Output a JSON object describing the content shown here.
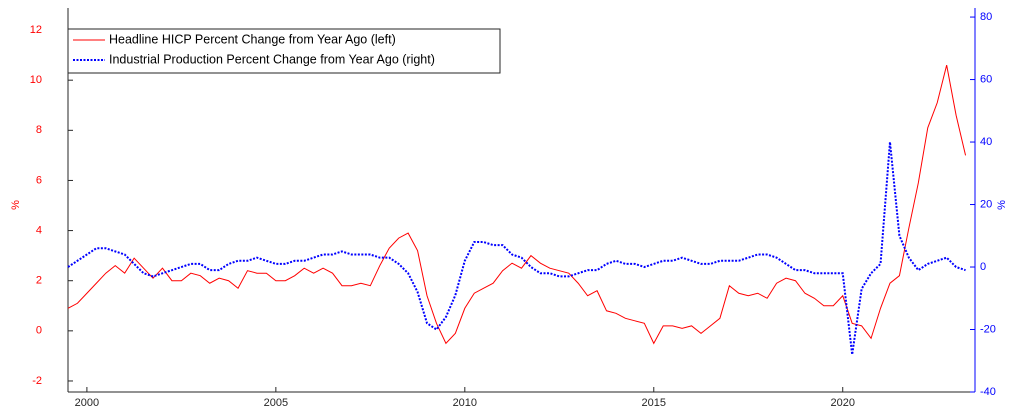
{
  "chart_data": {
    "type": "line",
    "x": [
      1999.5,
      1999.75,
      2000,
      2000.25,
      2000.5,
      2000.75,
      2001,
      2001.25,
      2001.5,
      2001.75,
      2002,
      2002.25,
      2002.5,
      2002.75,
      2003,
      2003.25,
      2003.5,
      2003.75,
      2004,
      2004.25,
      2004.5,
      2004.75,
      2005,
      2005.25,
      2005.5,
      2005.75,
      2006,
      2006.25,
      2006.5,
      2006.75,
      2007,
      2007.25,
      2007.5,
      2007.75,
      2008,
      2008.25,
      2008.5,
      2008.75,
      2009,
      2009.25,
      2009.5,
      2009.75,
      2010,
      2010.25,
      2010.5,
      2010.75,
      2011,
      2011.25,
      2011.5,
      2011.75,
      2012,
      2012.25,
      2012.5,
      2012.75,
      2013,
      2013.25,
      2013.5,
      2013.75,
      2014,
      2014.25,
      2014.5,
      2014.75,
      2015,
      2015.25,
      2015.5,
      2015.75,
      2016,
      2016.25,
      2016.5,
      2016.75,
      2017,
      2017.25,
      2017.5,
      2017.75,
      2018,
      2018.25,
      2018.5,
      2018.75,
      2019,
      2019.25,
      2019.5,
      2019.75,
      2020,
      2020.25,
      2020.5,
      2020.75,
      2021,
      2021.25,
      2021.5,
      2021.75,
      2022,
      2022.25,
      2022.5,
      2022.75,
      2023,
      2023.25
    ],
    "series": [
      {
        "name": "Headline HICP Percent Change from Year Ago (left)",
        "color": "#ff0000",
        "style": "solid",
        "axis": "y",
        "values": [
          0.9,
          1.1,
          1.5,
          1.9,
          2.3,
          2.6,
          2.3,
          2.9,
          2.5,
          2.1,
          2.5,
          2.0,
          2.0,
          2.3,
          2.2,
          1.9,
          2.1,
          2.0,
          1.7,
          2.4,
          2.3,
          2.3,
          2.0,
          2.0,
          2.2,
          2.5,
          2.3,
          2.5,
          2.3,
          1.8,
          1.8,
          1.9,
          1.8,
          2.6,
          3.3,
          3.7,
          3.9,
          3.2,
          1.4,
          0.3,
          -0.5,
          -0.1,
          0.9,
          1.5,
          1.7,
          1.9,
          2.4,
          2.7,
          2.5,
          3.0,
          2.7,
          2.5,
          2.4,
          2.3,
          1.9,
          1.4,
          1.6,
          0.8,
          0.7,
          0.5,
          0.4,
          0.3,
          -0.5,
          0.2,
          0.2,
          0.1,
          0.2,
          -0.1,
          0.2,
          0.5,
          1.8,
          1.5,
          1.4,
          1.5,
          1.3,
          1.9,
          2.1,
          2.0,
          1.5,
          1.3,
          1.0,
          1.0,
          1.4,
          0.3,
          0.2,
          -0.3,
          0.9,
          1.9,
          2.2,
          4.1,
          5.9,
          8.1,
          9.1,
          10.6,
          8.6,
          7.0
        ]
      },
      {
        "name": "Industrial Production Percent Change from Year Ago (right)",
        "color": "#0000ff",
        "style": "dotted",
        "axis": "y2",
        "values": [
          0,
          2,
          4,
          6,
          6,
          5,
          4,
          1,
          -2,
          -3,
          -2,
          -1,
          0,
          1,
          1,
          -1,
          -1,
          1,
          2,
          2,
          3,
          2,
          1,
          1,
          2,
          2,
          3,
          4,
          4,
          5,
          4,
          4,
          4,
          3,
          3,
          1,
          -2,
          -8,
          -18,
          -20,
          -16,
          -9,
          2,
          8,
          8,
          7,
          7,
          4,
          3,
          0,
          -2,
          -2,
          -3,
          -3,
          -2,
          -1,
          -1,
          1,
          2,
          1,
          1,
          0,
          1,
          2,
          2,
          3,
          2,
          1,
          1,
          2,
          2,
          2,
          3,
          4,
          4,
          3,
          1,
          -1,
          -1,
          -2,
          -2,
          -2,
          -2,
          -28,
          -7,
          -2,
          1,
          40,
          10,
          3,
          -1,
          1,
          2,
          3,
          0,
          -1
        ]
      }
    ],
    "y_label": "%",
    "y2_label": "%",
    "xlim": [
      1999.5,
      2023.5
    ],
    "xticks": [
      2000,
      2005,
      2010,
      2015,
      2020
    ],
    "ylim": [
      -2.44,
      12.88
    ],
    "yticks": [
      -2,
      0,
      2,
      4,
      6,
      8,
      10,
      12
    ],
    "y2lim": [
      -40,
      82.9
    ],
    "y2ticks": [
      -40,
      -20,
      0,
      20,
      40,
      60,
      80
    ],
    "legend": "upper left"
  }
}
